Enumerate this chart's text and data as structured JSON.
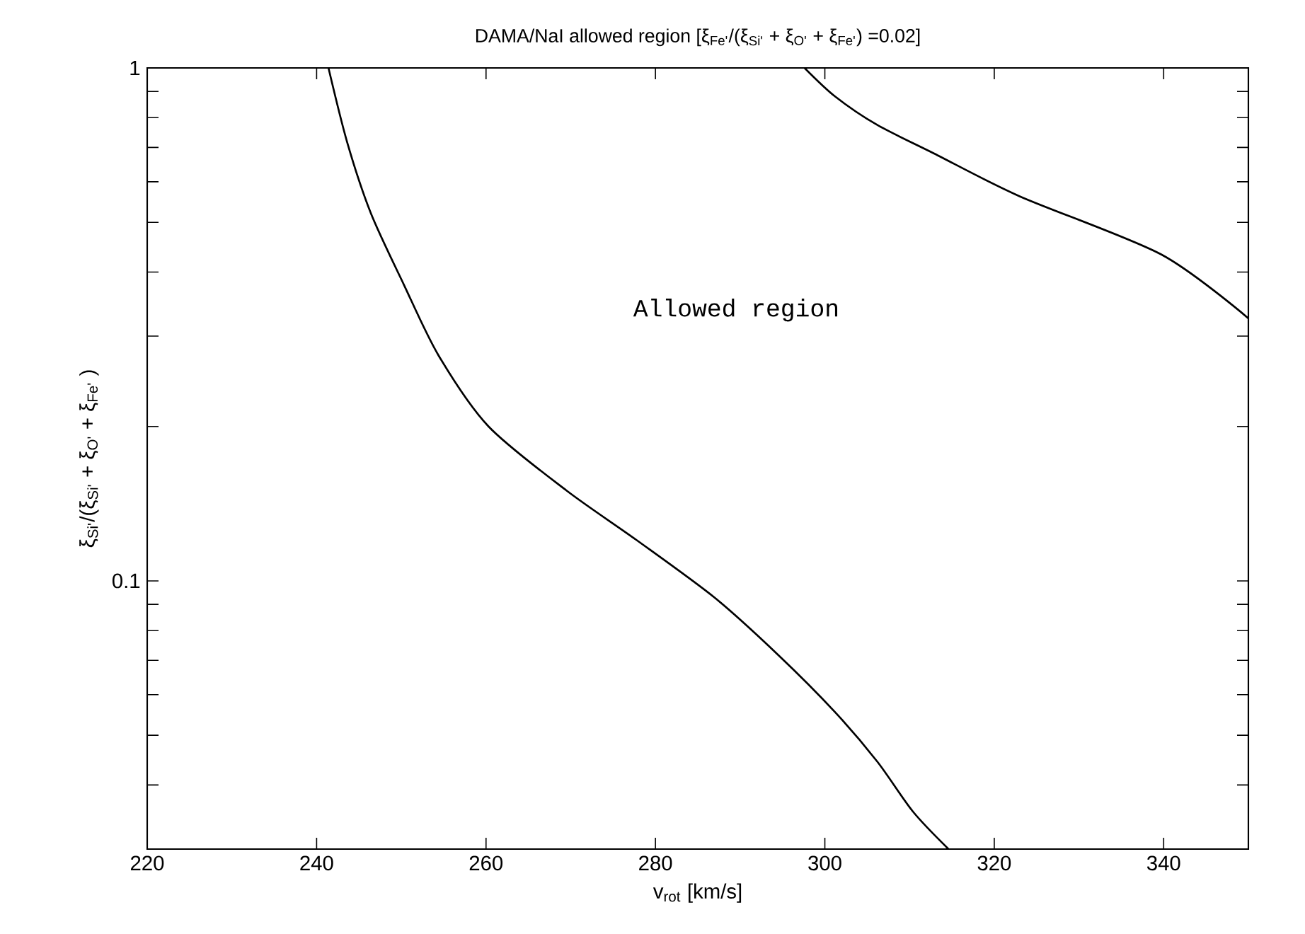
{
  "chart_data": {
    "type": "line",
    "title": "DAMA/NaI allowed region [ξ$_{Fe'}$/(ξ$_{Si'}$ + ξ$_{O'}$ + ξ$_{Fe'}$) =0.02]",
    "xlabel": "v$_{rot}$ [km/s]",
    "ylabel": "ξ$_{Si'}$/(ξ$_{Si'}$ + ξ$_{O'}$ + ξ$_{Fe'}$ )",
    "annotations": [
      "Allowed region"
    ],
    "series": [
      {
        "color": "#000000",
        "x": [
          241.4,
          243.6,
          246.4,
          250.3,
          254.4,
          260.3,
          269.5,
          277.8,
          287.0,
          294.5,
          301.2,
          306.2,
          310.4,
          314.6
        ],
        "values": [
          1,
          0.717,
          0.521,
          0.378,
          0.275,
          0.2,
          0.15,
          0.12,
          0.0927,
          0.0717,
          0.0555,
          0.0444,
          0.0355,
          0.03
        ]
      },
      {
        "color": "#000000",
        "x": [
          297.6,
          301.2,
          306.2,
          312.9,
          323.0,
          339.7,
          350
        ],
        "values": [
          1,
          0.88,
          0.774,
          0.681,
          0.562,
          0.433,
          0.325
        ]
      }
    ],
    "xlim": [
      220,
      350
    ],
    "ylim": [
      0.03,
      1
    ],
    "log": true,
    "xticks": [
      220,
      240,
      260,
      280,
      300,
      320,
      340
    ],
    "yticks": [
      {
        "value": 0.04,
        "label": null
      },
      {
        "value": 0.05,
        "label": null
      },
      {
        "value": 0.06,
        "label": null
      },
      {
        "value": 0.07,
        "label": null
      },
      {
        "value": 0.08,
        "label": null
      },
      {
        "value": 0.09,
        "label": null
      },
      0.1,
      {
        "value": 0.2,
        "label": null
      },
      {
        "value": 0.3,
        "label": null
      },
      {
        "value": 0.4,
        "label": null
      },
      {
        "value": 0.5,
        "label": null
      },
      {
        "value": 0.6,
        "label": null
      },
      {
        "value": 0.7,
        "label": null
      },
      {
        "value": 0.8,
        "label": null
      },
      {
        "value": 0.9,
        "label": null
      },
      1
    ],
    "grid": false,
    "marker": "none",
    "line_style": "solid"
  }
}
